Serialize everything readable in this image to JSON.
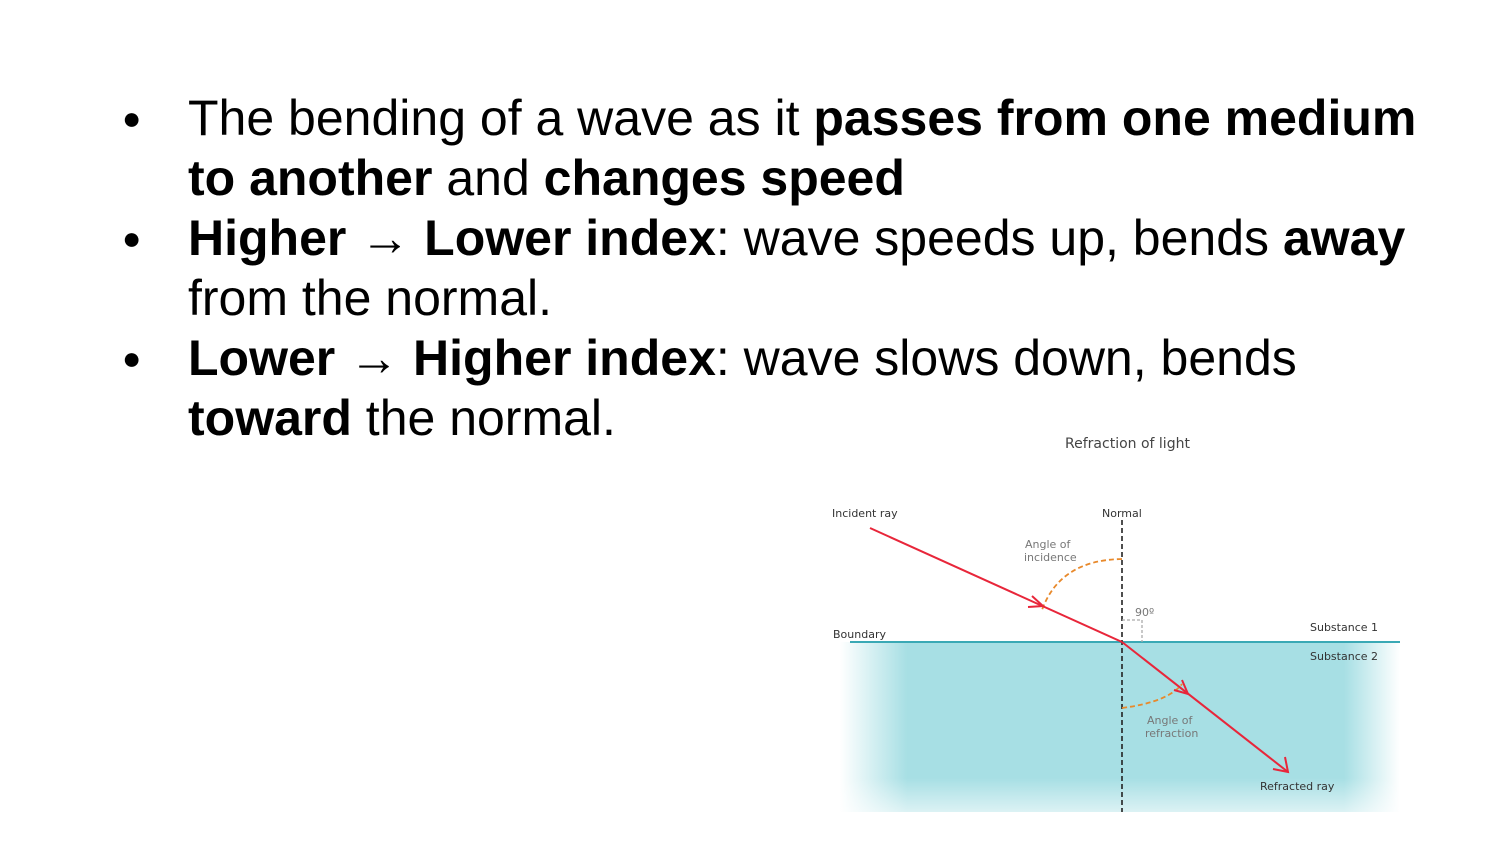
{
  "bullets": [
    {
      "parts": [
        {
          "t": "The bending of a wave as it ",
          "b": false
        },
        {
          "t": "passes from one medium to another",
          "b": true
        },
        {
          "t": " and ",
          "b": false
        },
        {
          "t": "changes speed",
          "b": true
        }
      ]
    },
    {
      "parts": [
        {
          "t": "Higher",
          "b": true
        },
        {
          "t": " → ",
          "b": false
        },
        {
          "t": "Lower index",
          "b": true
        },
        {
          "t": ": wave speeds up, bends ",
          "b": false
        },
        {
          "t": "away",
          "b": true
        },
        {
          "t": " from the normal.",
          "b": false
        }
      ]
    },
    {
      "parts": [
        {
          "t": "Lower",
          "b": true
        },
        {
          "t": " → ",
          "b": false
        },
        {
          "t": "Higher index",
          "b": true
        },
        {
          "t": ": wave slows down, bends ",
          "b": false
        },
        {
          "t": "toward",
          "b": true
        },
        {
          "t": " the normal.",
          "b": false
        }
      ]
    }
  ],
  "bullet_glyph": "●",
  "diagram": {
    "title": "Refraction of light",
    "labels": {
      "incident_ray": "Incident ray",
      "normal": "Normal",
      "angle_incidence_1": "Angle of",
      "angle_incidence_2": "incidence",
      "right_angle": "90º",
      "boundary": "Boundary",
      "substance1": "Substance 1",
      "substance2": "Substance 2",
      "angle_refraction_1": "Angle of",
      "angle_refraction_2": "refraction",
      "refracted_ray": "Refracted ray"
    },
    "colors": {
      "ray": "#e8263a",
      "angle_arc": "#e8892b",
      "water": "#a7dfe4",
      "boundary": "#3aa9b5"
    }
  }
}
